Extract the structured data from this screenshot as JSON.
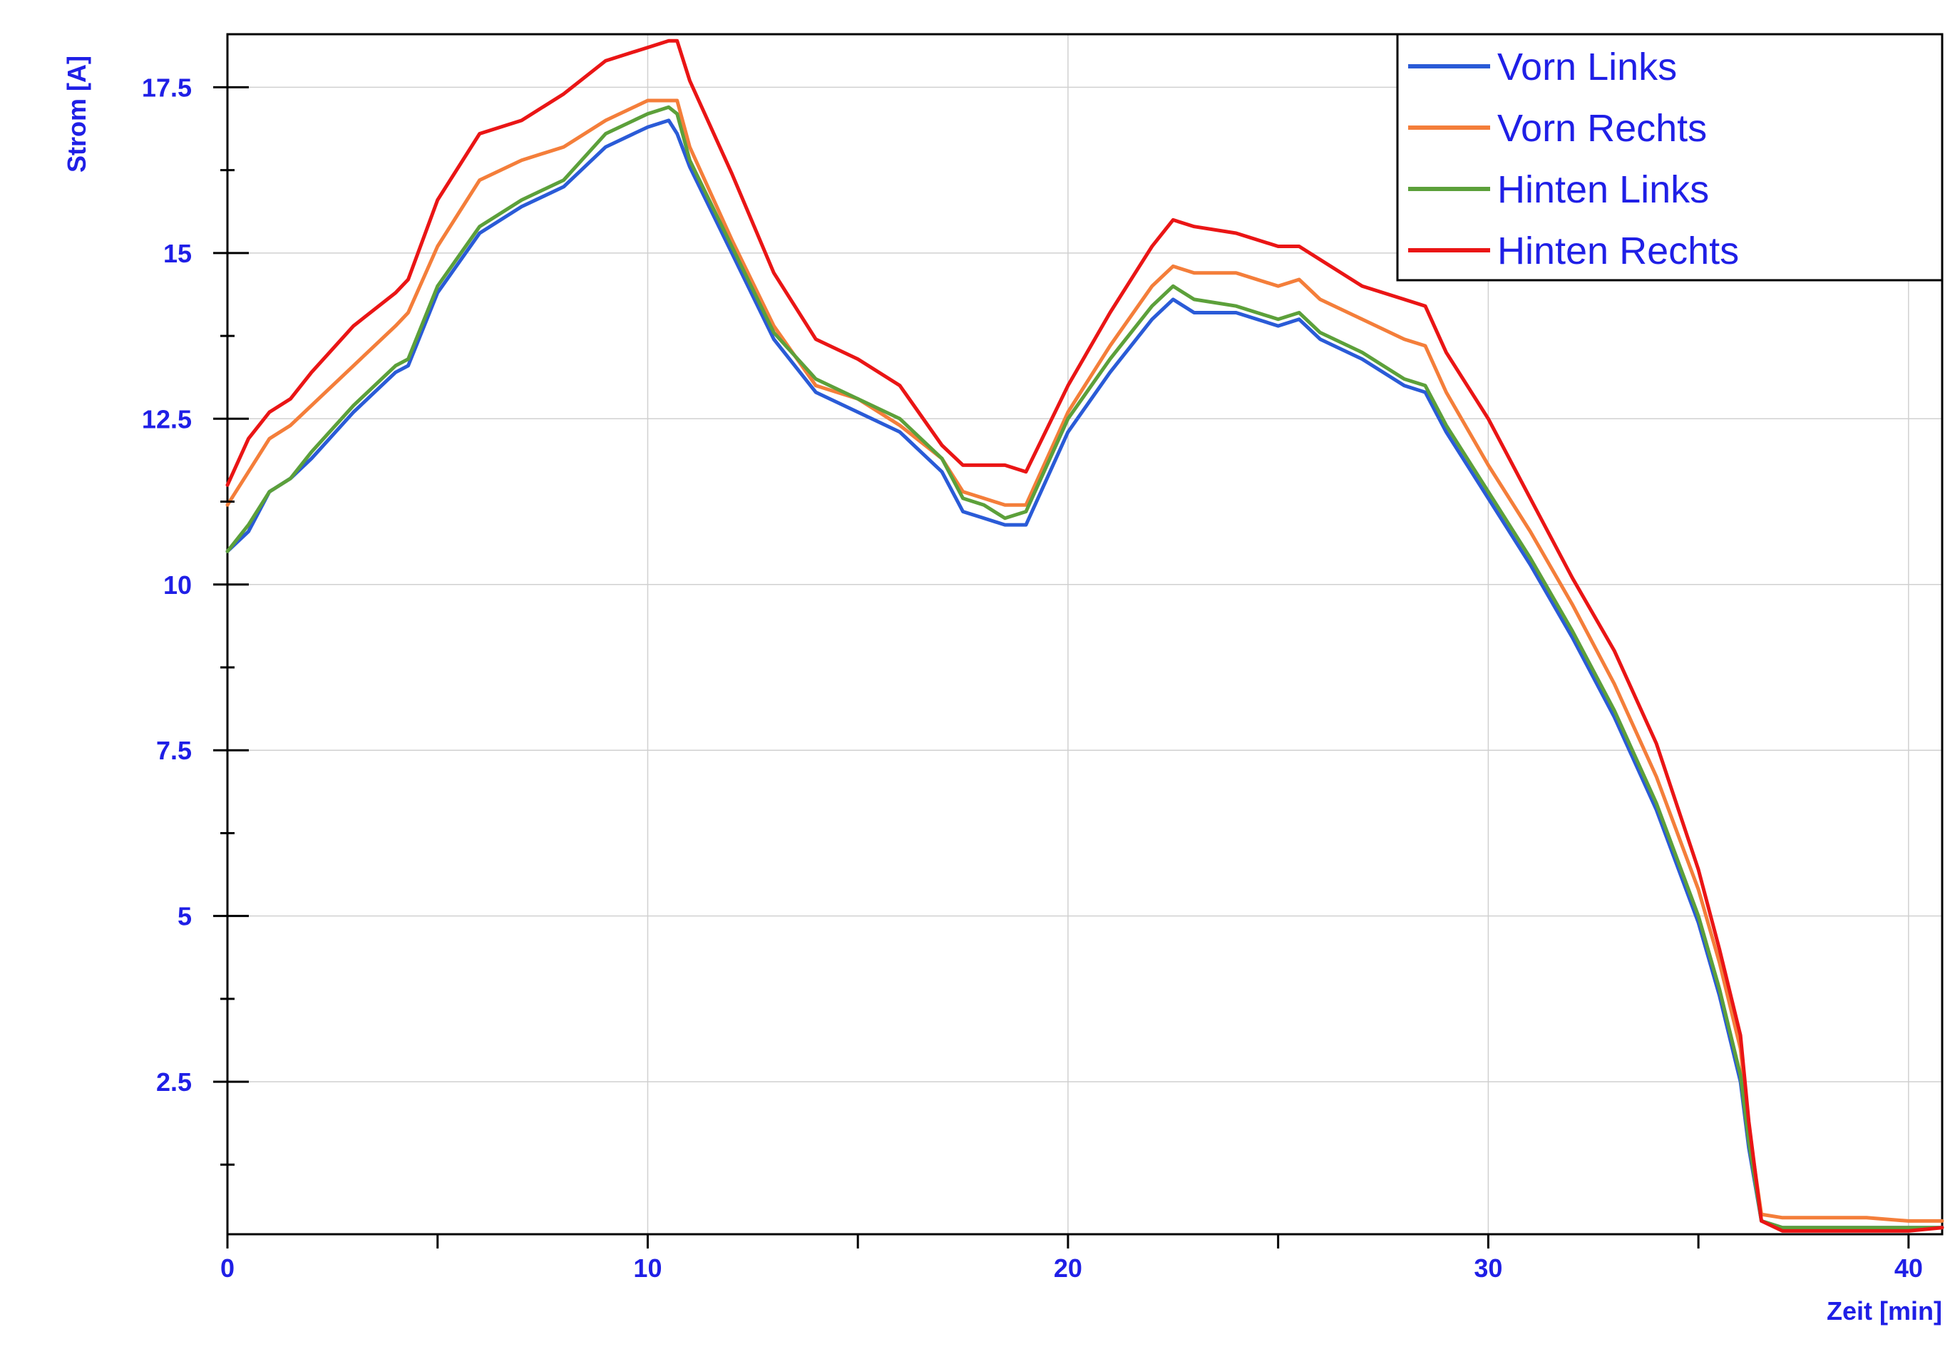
{
  "chart_data": {
    "type": "line",
    "title": "",
    "xlabel": "Zeit [min]",
    "ylabel": "Strom [A]",
    "xlim": [
      0,
      40.8
    ],
    "ylim": [
      0.2,
      18.3
    ],
    "x_ticks": [
      0,
      10,
      20,
      30,
      40
    ],
    "x_tick_labels": [
      "0",
      "10",
      "20",
      "30",
      "40"
    ],
    "x_minor_ticks": [
      5,
      15,
      25,
      35
    ],
    "y_ticks": [
      2.5,
      5,
      7.5,
      10,
      12.5,
      15,
      17.5
    ],
    "y_tick_labels": [
      "2.5",
      "5",
      "7.5",
      "10",
      "12.5",
      "15",
      "17.5"
    ],
    "y_minor_ticks": [
      1.25,
      3.75,
      6.25,
      8.75,
      11.25,
      13.75,
      16.25
    ],
    "grid": true,
    "legend_position": "top-right",
    "series": [
      {
        "name": "Vorn Links",
        "color": "#2a5bd7",
        "x": [
          0,
          0.5,
          1,
          1.5,
          2,
          3,
          4,
          4.3,
          5,
          6,
          7,
          8,
          9,
          10,
          10.5,
          10.7,
          11,
          12,
          13,
          14,
          15,
          16,
          17,
          17.5,
          18,
          18.5,
          19,
          20,
          21,
          22,
          22.5,
          23,
          24,
          25,
          25.5,
          26,
          27,
          28,
          28.5,
          29,
          30,
          31,
          32,
          33,
          34,
          35,
          35.5,
          36,
          36.2,
          36.5,
          37,
          38,
          39,
          40,
          40.8
        ],
        "y": [
          10.5,
          10.8,
          11.4,
          11.6,
          11.9,
          12.6,
          13.2,
          13.3,
          14.4,
          15.3,
          15.7,
          16.0,
          16.6,
          16.9,
          17.0,
          16.8,
          16.3,
          15.0,
          13.7,
          12.9,
          12.6,
          12.3,
          11.7,
          11.1,
          11.0,
          10.9,
          10.9,
          12.3,
          13.2,
          14.0,
          14.3,
          14.1,
          14.1,
          13.9,
          14.0,
          13.7,
          13.4,
          13.0,
          12.9,
          12.3,
          11.3,
          10.3,
          9.2,
          8.0,
          6.6,
          4.9,
          3.8,
          2.5,
          1.5,
          0.4,
          0.3,
          0.3,
          0.3,
          0.3,
          0.3
        ]
      },
      {
        "name": "Vorn Rechts",
        "color": "#f47e3a",
        "x": [
          0,
          0.5,
          1,
          1.5,
          2,
          3,
          4,
          4.3,
          5,
          6,
          7,
          8,
          9,
          10,
          10.5,
          10.7,
          11,
          12,
          13,
          14,
          15,
          16,
          17,
          17.5,
          18,
          18.5,
          19,
          20,
          21,
          22,
          22.5,
          23,
          24,
          25,
          25.5,
          26,
          27,
          28,
          28.5,
          29,
          30,
          31,
          32,
          33,
          34,
          35,
          35.5,
          36,
          36.2,
          36.5,
          37,
          38,
          39,
          40,
          40.8
        ],
        "y": [
          11.2,
          11.7,
          12.2,
          12.4,
          12.7,
          13.3,
          13.9,
          14.1,
          15.1,
          16.1,
          16.4,
          16.6,
          17.0,
          17.3,
          17.3,
          17.3,
          16.6,
          15.2,
          13.9,
          13.0,
          12.8,
          12.4,
          11.9,
          11.4,
          11.3,
          11.2,
          11.2,
          12.6,
          13.6,
          14.5,
          14.8,
          14.7,
          14.7,
          14.5,
          14.6,
          14.3,
          14.0,
          13.7,
          13.6,
          12.9,
          11.8,
          10.8,
          9.7,
          8.5,
          7.1,
          5.4,
          4.3,
          3.0,
          1.8,
          0.5,
          0.45,
          0.45,
          0.45,
          0.4,
          0.4
        ]
      },
      {
        "name": "Hinten Links",
        "color": "#5ca03a",
        "x": [
          0,
          0.5,
          1,
          1.5,
          2,
          3,
          4,
          4.3,
          5,
          6,
          7,
          8,
          9,
          10,
          10.5,
          10.7,
          11,
          12,
          13,
          14,
          15,
          16,
          17,
          17.5,
          18,
          18.5,
          19,
          20,
          21,
          22,
          22.5,
          23,
          24,
          25,
          25.5,
          26,
          27,
          28,
          28.5,
          29,
          30,
          31,
          32,
          33,
          34,
          35,
          35.5,
          36,
          36.2,
          36.5,
          37,
          38,
          39,
          40,
          40.8
        ],
        "y": [
          10.5,
          10.9,
          11.4,
          11.6,
          12.0,
          12.7,
          13.3,
          13.4,
          14.5,
          15.4,
          15.8,
          16.1,
          16.8,
          17.1,
          17.2,
          17.1,
          16.4,
          15.1,
          13.8,
          13.1,
          12.8,
          12.5,
          11.9,
          11.3,
          11.2,
          11.0,
          11.1,
          12.5,
          13.4,
          14.2,
          14.5,
          14.3,
          14.2,
          14.0,
          14.1,
          13.8,
          13.5,
          13.1,
          13.0,
          12.4,
          11.4,
          10.4,
          9.3,
          8.1,
          6.7,
          5.0,
          3.9,
          2.6,
          1.6,
          0.4,
          0.3,
          0.3,
          0.3,
          0.3,
          0.3
        ]
      },
      {
        "name": "Hinten Rechts",
        "color": "#ea1515",
        "x": [
          0,
          0.5,
          1,
          1.5,
          2,
          3,
          4,
          4.3,
          5,
          6,
          7,
          8,
          9,
          10,
          10.5,
          10.7,
          11,
          12,
          13,
          14,
          15,
          16,
          17,
          17.5,
          18,
          18.5,
          19,
          20,
          21,
          22,
          22.5,
          23,
          24,
          25,
          25.5,
          26,
          27,
          28,
          28.5,
          29,
          30,
          31,
          32,
          33,
          34,
          35,
          35.5,
          36,
          36.2,
          36.5,
          37,
          38,
          39,
          40,
          40.8
        ],
        "y": [
          11.5,
          12.2,
          12.6,
          12.8,
          13.2,
          13.9,
          14.4,
          14.6,
          15.8,
          16.8,
          17.0,
          17.4,
          17.9,
          18.1,
          18.2,
          18.2,
          17.6,
          16.2,
          14.7,
          13.7,
          13.4,
          13.0,
          12.1,
          11.8,
          11.8,
          11.8,
          11.7,
          13.0,
          14.1,
          15.1,
          15.5,
          15.4,
          15.3,
          15.1,
          15.1,
          14.9,
          14.5,
          14.3,
          14.2,
          13.5,
          12.5,
          11.3,
          10.1,
          9.0,
          7.6,
          5.7,
          4.5,
          3.2,
          1.9,
          0.4,
          0.25,
          0.25,
          0.25,
          0.25,
          0.3
        ]
      }
    ]
  }
}
